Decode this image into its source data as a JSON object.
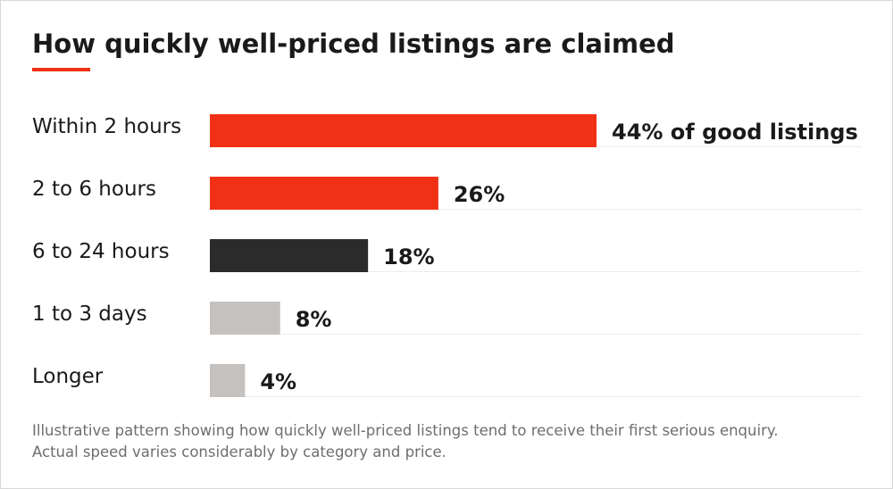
{
  "title": "How quickly well-priced listings are claimed",
  "colors": {
    "accent": "#f03116",
    "dark": "#2b2b2b",
    "light": "#c4c1be",
    "text": "#1a1a1a",
    "muted": "#6e6e6e",
    "gridline": "#ececec"
  },
  "chart_data": {
    "type": "bar",
    "orientation": "horizontal",
    "categories": [
      "Within 2 hours",
      "2 to 6 hours",
      "6 to 24 hours",
      "1 to 3 days",
      "Longer"
    ],
    "values": [
      44,
      26,
      18,
      8,
      4
    ],
    "value_labels": [
      "44% of good listings",
      "26%",
      "18%",
      "8%",
      "4%"
    ],
    "bar_colors": [
      "#f03116",
      "#f03116",
      "#2b2b2b",
      "#c4c1be",
      "#c4c1be"
    ],
    "unit": "%",
    "xlim": [
      0,
      44
    ],
    "grid": false,
    "legend": "none"
  },
  "footnote": {
    "line1": "Illustrative pattern showing how quickly well-priced listings tend to receive their first serious enquiry.",
    "line2": "Actual speed varies considerably by category and price."
  }
}
